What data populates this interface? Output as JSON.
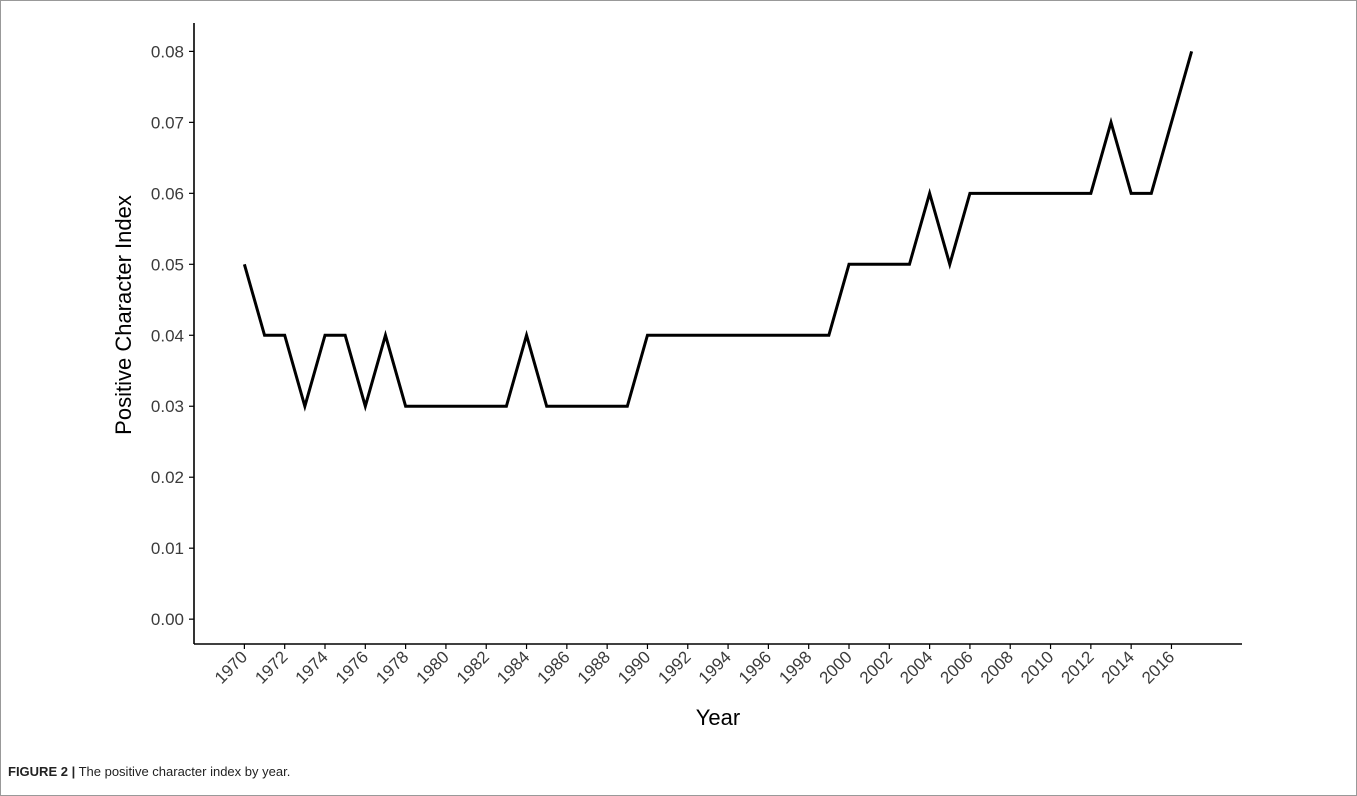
{
  "figure": {
    "label": "FIGURE 2 |",
    "caption": " The positive character index by year."
  },
  "colors": {
    "line": "#000000",
    "axis": "#000000",
    "tick_label": "#3b3b3b",
    "frame": "#999999"
  },
  "chart_data": {
    "type": "line",
    "title": "",
    "xlabel": "Year",
    "ylabel": "Positive Character Index",
    "xlim": [
      1967.5,
      2019.5
    ],
    "ylim": [
      -0.0035,
      0.084
    ],
    "grid": false,
    "x_ticks": [
      1970,
      1972,
      1974,
      1976,
      1978,
      1980,
      1982,
      1984,
      1986,
      1988,
      1990,
      1992,
      1994,
      1996,
      1998,
      2000,
      2002,
      2004,
      2006,
      2008,
      2010,
      2012,
      2014,
      2016
    ],
    "y_ticks": [
      "0.00",
      "0.01",
      "0.02",
      "0.03",
      "0.04",
      "0.05",
      "0.06",
      "0.07",
      "0.08"
    ],
    "x": [
      1970,
      1971,
      1972,
      1973,
      1974,
      1975,
      1976,
      1977,
      1978,
      1979,
      1980,
      1981,
      1982,
      1983,
      1984,
      1985,
      1986,
      1987,
      1988,
      1989,
      1990,
      1991,
      1992,
      1993,
      1994,
      1995,
      1996,
      1997,
      1998,
      1999,
      2000,
      2001,
      2002,
      2003,
      2004,
      2005,
      2006,
      2007,
      2008,
      2009,
      2010,
      2011,
      2012,
      2013,
      2014,
      2015,
      2016,
      2017
    ],
    "values": [
      0.05,
      0.04,
      0.04,
      0.03,
      0.04,
      0.04,
      0.03,
      0.04,
      0.03,
      0.03,
      0.03,
      0.03,
      0.03,
      0.03,
      0.04,
      0.03,
      0.03,
      0.03,
      0.03,
      0.03,
      0.04,
      0.04,
      0.04,
      0.04,
      0.04,
      0.04,
      0.04,
      0.04,
      0.04,
      0.04,
      0.05,
      0.05,
      0.05,
      0.05,
      0.06,
      0.05,
      0.06,
      0.06,
      0.06,
      0.06,
      0.06,
      0.06,
      0.06,
      0.07,
      0.06,
      0.06,
      0.07,
      0.08
    ]
  }
}
